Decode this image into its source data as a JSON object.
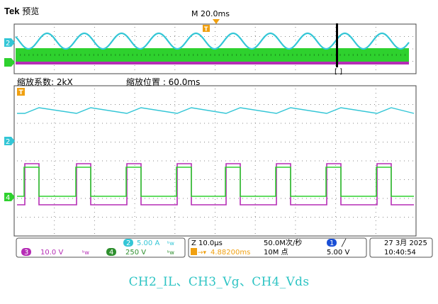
{
  "header": {
    "brand": "Tek",
    "mode": "预览",
    "main_timebase": "M 20.0ms"
  },
  "zoom_bar": {
    "factor_label": "缩放系数: 2kX",
    "position_label": "缩放位置 : 60.0ms"
  },
  "markers": {
    "ch2": "2",
    "ch4": "4",
    "trigger": "T",
    "cursor": "[ ]"
  },
  "status": {
    "ch2_scale": "5.00 A",
    "ch2_num": "2",
    "ch3_num": "3",
    "ch3_scale": "10.0 V",
    "ch4_num": "4",
    "ch4_scale": "250 V",
    "bw_symbol": "ᵇw",
    "zoom_timebase": "Z 10.0μs",
    "trigger_pos": "4.88200ms",
    "sample_rate": "50.0M次/秒",
    "record_length": "10M 点",
    "trig_ch": "1",
    "trig_slope": "╱",
    "trig_level": "5.00 V",
    "date": "27 3月 2025",
    "time": "10:40:54"
  },
  "caption": "CH2_IL、CH3_Vg、CH4_Vds",
  "colors": {
    "ch2": "#33c6d6",
    "ch3": "#b52db5",
    "ch4": "#2ed12e",
    "trigger": "#f0a010",
    "grid": "#9a9a9a",
    "caption": "#2ec4c4"
  }
}
